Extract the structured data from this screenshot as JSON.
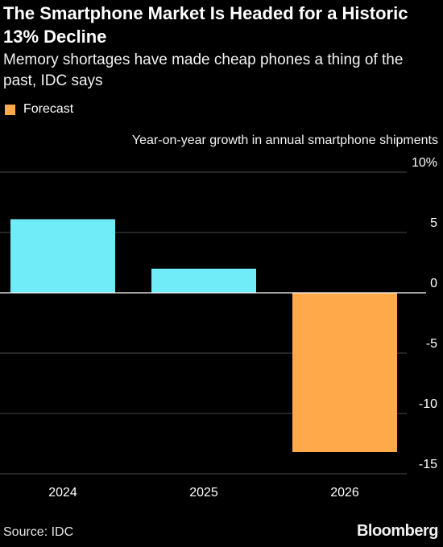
{
  "header": {
    "title": "The Smartphone Market Is Headed for a Historic 13% Decline",
    "subtitle": "Memory shortages have made cheap phones a thing of the past, IDC says"
  },
  "legend": {
    "forecast_label": "Forecast"
  },
  "footer": {
    "source": "Source: IDC",
    "brand": "Bloomberg"
  },
  "colors": {
    "background": "#000000",
    "actual": "#6fecf8",
    "forecast": "#ffa94a",
    "gridline": "#4a4a4a",
    "zero_line": "#ffffff"
  },
  "chart_data": {
    "type": "bar",
    "title": "The Smartphone Market Is Headed for a Historic 13% Decline",
    "subtitle": "Memory shortages have made cheap phones a thing of the past, IDC says",
    "ylabel": "Year-on-year growth in annual smartphone shipments",
    "categories": [
      "2024",
      "2025",
      "2026"
    ],
    "values": [
      6.1,
      2.0,
      -13.2
    ],
    "forecast": [
      false,
      false,
      true
    ],
    "ylim": [
      -15,
      10
    ],
    "yticks": [
      10,
      5,
      0,
      -5,
      -10,
      -15
    ],
    "ytick_labels": [
      "10%",
      "5",
      "0",
      "-5",
      "-10",
      "-15"
    ],
    "grid": true,
    "legend_position": "top-left"
  }
}
